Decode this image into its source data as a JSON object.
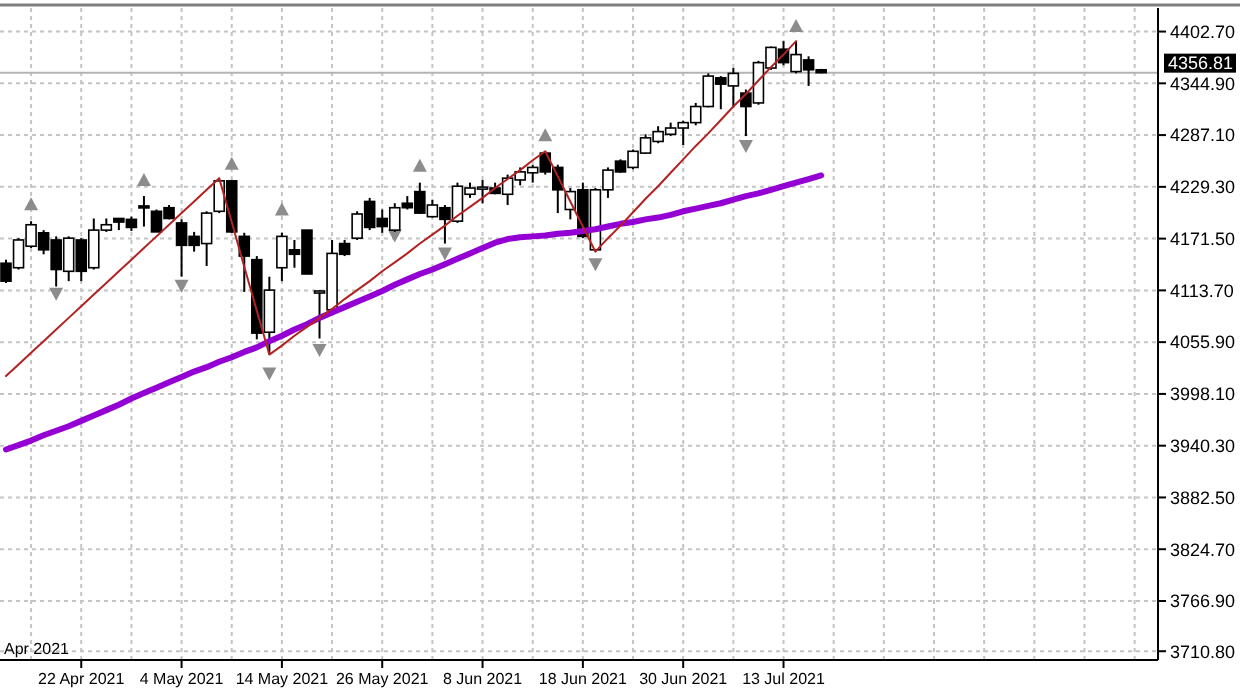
{
  "chart_data": {
    "type": "candlestick",
    "categories": [
      null,
      null,
      null,
      null,
      null,
      null,
      "22 Apr 2021",
      null,
      null,
      null,
      null,
      null,
      null,
      null,
      "4 May 2021",
      null,
      null,
      null,
      null,
      null,
      null,
      null,
      "14 May 2021",
      null,
      null,
      null,
      null,
      null,
      null,
      null,
      "26 May 2021",
      null,
      null,
      null,
      null,
      null,
      null,
      null,
      "8 Jun 2021",
      null,
      null,
      null,
      null,
      null,
      null,
      null,
      "18 Jun 2021",
      null,
      null,
      null,
      null,
      null,
      null,
      null,
      "30 Jun 2021",
      null,
      null,
      null,
      null,
      null,
      null,
      null,
      "13 Jul 2021",
      null,
      null,
      null,
      null,
      null,
      null,
      null,
      null,
      null,
      null,
      null,
      null,
      null,
      null,
      null,
      null,
      null,
      null,
      null,
      null,
      null,
      null,
      null,
      null,
      null,
      null,
      null,
      null,
      null
    ],
    "ohlc": [
      [
        4144,
        4148,
        4122,
        4124
      ],
      [
        4139,
        4172,
        4137,
        4170
      ],
      [
        4163,
        4191,
        4161,
        4187
      ],
      [
        4178,
        4181,
        4154,
        4159
      ],
      [
        4170,
        4174,
        4118,
        4137
      ],
      [
        4135,
        4174,
        4124,
        4172
      ],
      [
        4170,
        4172,
        4124,
        4135
      ],
      [
        4139,
        4194,
        4137,
        4181
      ],
      [
        4181,
        4194,
        4179,
        4187
      ],
      [
        4194,
        4194,
        4181,
        4190
      ],
      [
        4193,
        4196,
        4180,
        4184
      ],
      [
        4208,
        4219,
        4185,
        4207
      ],
      [
        4202,
        4204,
        4179,
        4179
      ],
      [
        4206,
        4209,
        4193,
        4194
      ],
      [
        4189,
        4193,
        4129,
        4164
      ],
      [
        4174,
        4179,
        4157,
        4164
      ],
      [
        4166,
        4202,
        4141,
        4200
      ],
      [
        4202,
        4239,
        4200,
        4236
      ],
      [
        4236,
        4237,
        4178,
        4179
      ],
      [
        4174,
        4178,
        4112,
        4152
      ],
      [
        4148,
        4152,
        4059,
        4066
      ],
      [
        4067,
        4129,
        4042,
        4114
      ],
      [
        4139,
        4178,
        4124,
        4174
      ],
      [
        4159,
        4170,
        4139,
        4154
      ],
      [
        4181,
        4181,
        4132,
        4132
      ],
      [
        4112,
        4114,
        4060,
        4113
      ],
      [
        4092,
        4170,
        4090,
        4155
      ],
      [
        4166,
        4170,
        4152,
        4154
      ],
      [
        4172,
        4202,
        4170,
        4199
      ],
      [
        4213,
        4217,
        4181,
        4184
      ],
      [
        4194,
        4204,
        4178,
        4185
      ],
      [
        4181,
        4211,
        4179,
        4206
      ],
      [
        4211,
        4219,
        4204,
        4206
      ],
      [
        4224,
        4234,
        4199,
        4200
      ],
      [
        4196,
        4215,
        4195,
        4209
      ],
      [
        4206,
        4209,
        4166,
        4193
      ],
      [
        4191,
        4234,
        4189,
        4230
      ],
      [
        4221,
        4234,
        4217,
        4228
      ],
      [
        4228,
        4237,
        4211,
        4229
      ],
      [
        4228,
        4234,
        4221,
        4222
      ],
      [
        4221,
        4243,
        4209,
        4239
      ],
      [
        4237,
        4251,
        4231,
        4246
      ],
      [
        4245,
        4254,
        4234,
        4251
      ],
      [
        4267,
        4269,
        4243,
        4246
      ],
      [
        4251,
        4254,
        4200,
        4226
      ],
      [
        4204,
        4228,
        4193,
        4224
      ],
      [
        4226,
        4234,
        4172,
        4174
      ],
      [
        4159,
        4228,
        4157,
        4226
      ],
      [
        4226,
        4251,
        4217,
        4248
      ],
      [
        4258,
        4260,
        4245,
        4246
      ],
      [
        4251,
        4271,
        4249,
        4269
      ],
      [
        4267,
        4288,
        4266,
        4284
      ],
      [
        4280,
        4297,
        4278,
        4291
      ],
      [
        4288,
        4301,
        4286,
        4295
      ],
      [
        4295,
        4303,
        4276,
        4301
      ],
      [
        4301,
        4323,
        4298,
        4319
      ],
      [
        4319,
        4356,
        4318,
        4353
      ],
      [
        4351,
        4353,
        4316,
        4344
      ],
      [
        4342,
        4362,
        4318,
        4356
      ],
      [
        4334,
        4338,
        4286,
        4319
      ],
      [
        4323,
        4370,
        4321,
        4368
      ],
      [
        4362,
        4386,
        4360,
        4385
      ],
      [
        4383,
        4392,
        4365,
        4368
      ],
      [
        4358,
        4392,
        4356,
        4377
      ],
      [
        4371,
        4375,
        4342,
        4360
      ],
      [
        4360,
        4361,
        4356,
        4356.81
      ],
      null,
      null,
      null,
      null,
      null,
      null,
      null,
      null,
      null,
      null,
      null,
      null,
      null,
      null,
      null,
      null,
      null,
      null,
      null,
      null,
      null,
      null,
      null,
      null,
      null,
      null
    ],
    "series": [
      {
        "type": "line",
        "color": "#9400d3",
        "values": [
          3936,
          3941,
          3946,
          3952,
          3957,
          3962,
          3968,
          3974,
          3980,
          3986,
          3993,
          3999,
          4005,
          4011,
          4017,
          4023,
          4028,
          4034,
          4039,
          4045,
          4050,
          4057,
          4063,
          4070,
          4076,
          4083,
          4089,
          4095,
          4101,
          4107,
          4113,
          4120,
          4126,
          4132,
          4137,
          4143,
          4149,
          4155,
          4161,
          4167,
          4171,
          4173,
          4174,
          4175,
          4177,
          4178,
          4180,
          4182,
          4185,
          4188,
          4190,
          4193,
          4195,
          4198,
          4202,
          4205,
          4208,
          4211,
          4215,
          4219,
          4222,
          4226,
          4230,
          4234,
          4238,
          4242,
          null,
          null,
          null,
          null,
          null,
          null,
          null,
          null,
          null,
          null,
          null,
          null,
          null,
          null,
          null,
          null,
          null,
          null,
          null,
          null,
          null,
          null,
          null,
          null,
          null,
          null
        ]
      },
      {
        "type": "line",
        "color": "#b22222",
        "values": [
          4018,
          4031,
          4044,
          4057,
          4070,
          4083,
          4096,
          4109,
          4122,
          4135,
          4148,
          4161,
          4174,
          4187,
          4200,
          4213,
          4226,
          4239,
          4190,
          4140,
          4091,
          4042,
          4052,
          4063,
          4073,
          4083,
          4093,
          4104,
          4114,
          4124,
          4135,
          4145,
          4155,
          4166,
          4176,
          4186,
          4197,
          4207,
          4217,
          4228,
          4238,
          4248,
          4259,
          4269,
          4241,
          4213,
          4185,
          4157,
          4172,
          4186,
          4201,
          4216,
          4230,
          4245,
          4260,
          4275,
          4289,
          4304,
          4319,
          4333,
          4348,
          4363,
          4377,
          4392,
          null,
          null,
          null,
          null,
          null,
          null,
          null,
          null,
          null,
          null,
          null,
          null,
          null,
          null,
          null,
          null,
          null,
          null,
          null,
          null,
          null,
          null,
          null,
          null,
          null,
          null,
          null,
          null
        ]
      },
      {
        "type": "scatter",
        "color": "#8c8c8c",
        "marker": "triangle",
        "values": [
          null,
          null,
          4210,
          null,
          null,
          null,
          null,
          null,
          null,
          null,
          null,
          4237,
          null,
          null,
          null,
          null,
          null,
          null,
          4255,
          null,
          null,
          null,
          4204,
          null,
          null,
          null,
          null,
          null,
          null,
          null,
          null,
          null,
          null,
          4253,
          null,
          null,
          null,
          null,
          null,
          null,
          null,
          null,
          null,
          4287,
          null,
          null,
          null,
          null,
          null,
          null,
          null,
          null,
          null,
          null,
          null,
          null,
          null,
          null,
          null,
          null,
          null,
          null,
          null,
          4409,
          null,
          null,
          null,
          null,
          null,
          null,
          null,
          null,
          null,
          null,
          null,
          null,
          null,
          null,
          null,
          null,
          null,
          null,
          null,
          null,
          null,
          null,
          null,
          null,
          null,
          null,
          null,
          null
        ]
      },
      {
        "type": "scatter",
        "color": "#8c8c8c",
        "marker": "triangle",
        "values": [
          null,
          null,
          null,
          null,
          4110,
          null,
          null,
          null,
          null,
          null,
          null,
          null,
          null,
          null,
          4119,
          null,
          null,
          null,
          null,
          null,
          null,
          4021,
          null,
          null,
          null,
          4047,
          null,
          null,
          null,
          null,
          null,
          4175,
          null,
          null,
          null,
          4155,
          null,
          null,
          null,
          null,
          null,
          null,
          null,
          null,
          null,
          null,
          null,
          4143,
          null,
          null,
          null,
          null,
          null,
          null,
          null,
          null,
          null,
          null,
          null,
          4275,
          null,
          null,
          null,
          null,
          null,
          null,
          null,
          null,
          null,
          null,
          null,
          null,
          null,
          null,
          null,
          null,
          null,
          null,
          null,
          null,
          null,
          null,
          null,
          null,
          null,
          null,
          null,
          null,
          null,
          null,
          null,
          null
        ]
      }
    ],
    "ylim": [
      3701,
      4429
    ],
    "yticks": [
      {
        "value": 4402.7,
        "label": "4402.70"
      },
      {
        "value": 4344.9,
        "label": "4344.90"
      },
      {
        "value": 4287.1,
        "label": "4287.10"
      },
      {
        "value": 4229.3,
        "label": "4229.30"
      },
      {
        "value": 4171.5,
        "label": "4171.50"
      },
      {
        "value": 4113.7,
        "label": "4113.70"
      },
      {
        "value": 4055.9,
        "label": "4055.90"
      },
      {
        "value": 3998.1,
        "label": "3998.10"
      },
      {
        "value": 3940.3,
        "label": "3940.30"
      },
      {
        "value": 3882.5,
        "label": "3882.50"
      },
      {
        "value": 3824.7,
        "label": "3824.70"
      },
      {
        "value": 3766.9,
        "label": "3766.90"
      },
      {
        "value": 3710.8,
        "label": "3710.80"
      }
    ],
    "ref_lines": [
      {
        "axis": "y",
        "value": 4356.81,
        "label": "4356.81",
        "color": "#b4b4b4"
      }
    ],
    "grid": true,
    "annotations": [
      "Apr 2021"
    ]
  }
}
